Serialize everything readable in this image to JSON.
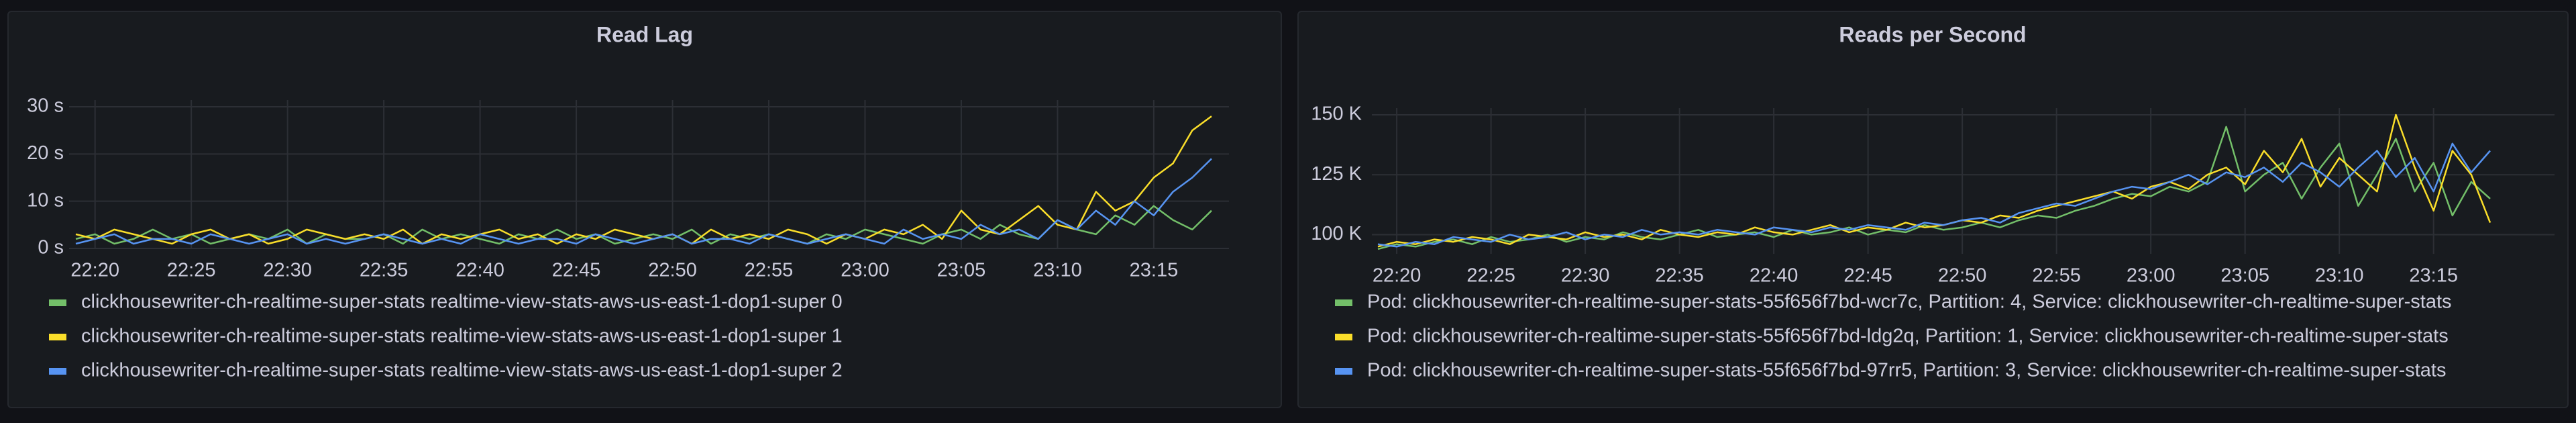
{
  "chart_data": [
    {
      "type": "line",
      "title": "Read Lag",
      "x": [
        "22:19",
        "22:20",
        "22:21",
        "22:22",
        "22:23",
        "22:24",
        "22:25",
        "22:26",
        "22:27",
        "22:28",
        "22:29",
        "22:30",
        "22:31",
        "22:32",
        "22:33",
        "22:34",
        "22:35",
        "22:36",
        "22:37",
        "22:38",
        "22:39",
        "22:40",
        "22:41",
        "22:42",
        "22:43",
        "22:44",
        "22:45",
        "22:46",
        "22:47",
        "22:48",
        "22:49",
        "22:50",
        "22:51",
        "22:52",
        "22:53",
        "22:54",
        "22:55",
        "22:56",
        "22:57",
        "22:58",
        "22:59",
        "23:00",
        "23:01",
        "23:02",
        "23:03",
        "23:04",
        "23:05",
        "23:06",
        "23:07",
        "23:08",
        "23:09",
        "23:10",
        "23:11",
        "23:12",
        "23:13",
        "23:14",
        "23:15",
        "23:16",
        "23:17",
        "23:18"
      ],
      "xlim": [
        "22:19",
        "23:18"
      ],
      "xticks": [
        "22:20",
        "22:25",
        "22:30",
        "22:35",
        "22:40",
        "22:45",
        "22:50",
        "22:55",
        "23:00",
        "23:05",
        "23:10",
        "23:15"
      ],
      "ylim": [
        0,
        30
      ],
      "yticks": [
        {
          "value": 0,
          "label": "0 s"
        },
        {
          "value": 10,
          "label": "10 s"
        },
        {
          "value": 20,
          "label": "20 s"
        },
        {
          "value": 30,
          "label": "30 s"
        }
      ],
      "grid": true,
      "legend": "bottom",
      "series": [
        {
          "name": "clickhousewriter-ch-realtime-super-stats realtime-view-stats-aws-us-east-1-dop1-super 0",
          "color": "#73bf69",
          "values": [
            2,
            3,
            1,
            2,
            4,
            2,
            3,
            1,
            2,
            3,
            2,
            4,
            1,
            3,
            2,
            2,
            3,
            1,
            4,
            2,
            3,
            2,
            1,
            3,
            2,
            4,
            2,
            3,
            1,
            2,
            3,
            2,
            4,
            1,
            3,
            2,
            3,
            2,
            1,
            3,
            2,
            4,
            3,
            2,
            1,
            3,
            4,
            2,
            5,
            3,
            2,
            6,
            4,
            3,
            7,
            5,
            9,
            6,
            4,
            8
          ]
        },
        {
          "name": "clickhousewriter-ch-realtime-super-stats realtime-view-stats-aws-us-east-1-dop1-super 1",
          "color": "#fade2a",
          "values": [
            3,
            2,
            4,
            3,
            2,
            1,
            3,
            4,
            2,
            3,
            1,
            2,
            4,
            3,
            2,
            3,
            2,
            4,
            1,
            3,
            2,
            3,
            4,
            2,
            3,
            1,
            3,
            2,
            4,
            3,
            2,
            3,
            1,
            4,
            2,
            3,
            2,
            4,
            3,
            1,
            3,
            2,
            4,
            3,
            5,
            2,
            8,
            4,
            3,
            6,
            9,
            5,
            4,
            12,
            8,
            10,
            15,
            18,
            25,
            28
          ]
        },
        {
          "name": "clickhousewriter-ch-realtime-super-stats realtime-view-stats-aws-us-east-1-dop1-super 2",
          "color": "#5794f2",
          "values": [
            1,
            2,
            3,
            1,
            2,
            2,
            1,
            3,
            2,
            1,
            2,
            3,
            1,
            2,
            1,
            2,
            3,
            2,
            1,
            2,
            1,
            3,
            2,
            1,
            2,
            2,
            1,
            3,
            2,
            1,
            2,
            3,
            1,
            2,
            2,
            1,
            3,
            2,
            1,
            2,
            3,
            2,
            1,
            4,
            2,
            3,
            2,
            5,
            3,
            4,
            2,
            6,
            4,
            8,
            5,
            10,
            7,
            12,
            15,
            19
          ]
        }
      ]
    },
    {
      "type": "line",
      "title": "Reads per Second",
      "x": [
        "22:19",
        "22:20",
        "22:21",
        "22:22",
        "22:23",
        "22:24",
        "22:25",
        "22:26",
        "22:27",
        "22:28",
        "22:29",
        "22:30",
        "22:31",
        "22:32",
        "22:33",
        "22:34",
        "22:35",
        "22:36",
        "22:37",
        "22:38",
        "22:39",
        "22:40",
        "22:41",
        "22:42",
        "22:43",
        "22:44",
        "22:45",
        "22:46",
        "22:47",
        "22:48",
        "22:49",
        "22:50",
        "22:51",
        "22:52",
        "22:53",
        "22:54",
        "22:55",
        "22:56",
        "22:57",
        "22:58",
        "22:59",
        "23:00",
        "23:01",
        "23:02",
        "23:03",
        "23:04",
        "23:05",
        "23:06",
        "23:07",
        "23:08",
        "23:09",
        "23:10",
        "23:11",
        "23:12",
        "23:13",
        "23:14",
        "23:15",
        "23:16",
        "23:17",
        "23:18"
      ],
      "xlim": [
        "22:19",
        "23:18"
      ],
      "xticks": [
        "22:20",
        "22:25",
        "22:30",
        "22:35",
        "22:40",
        "22:45",
        "22:50",
        "22:55",
        "23:00",
        "23:05",
        "23:10",
        "23:15"
      ],
      "ylim": [
        92000,
        150000
      ],
      "yticks": [
        {
          "value": 100000,
          "label": "100 K"
        },
        {
          "value": 125000,
          "label": "125 K"
        },
        {
          "value": 150000,
          "label": "150 K"
        }
      ],
      "grid": true,
      "legend": "bottom",
      "series": [
        {
          "name": "Pod: clickhousewriter-ch-realtime-super-stats-55f656f7bd-wcr7c, Partition: 4, Service: clickhousewriter-ch-realtime-super-stats",
          "color": "#73bf69",
          "values": [
            94000,
            96000,
            95000,
            97000,
            98000,
            96000,
            99000,
            97000,
            98000,
            100000,
            97000,
            99000,
            98000,
            101000,
            99000,
            98000,
            100000,
            102000,
            99000,
            100000,
            101000,
            99000,
            102000,
            100000,
            101000,
            103000,
            100000,
            102000,
            101000,
            104000,
            102000,
            103000,
            105000,
            103000,
            106000,
            108000,
            107000,
            110000,
            112000,
            115000,
            117000,
            116000,
            120000,
            118000,
            122000,
            145000,
            118000,
            125000,
            130000,
            115000,
            128000,
            138000,
            112000,
            125000,
            140000,
            118000,
            130000,
            108000,
            122000,
            115000
          ]
        },
        {
          "name": "Pod: clickhousewriter-ch-realtime-super-stats-55f656f7bd-ldg2q, Partition: 1, Service: clickhousewriter-ch-realtime-super-stats",
          "color": "#fade2a",
          "values": [
            95000,
            97000,
            96000,
            98000,
            97000,
            99000,
            98000,
            96000,
            100000,
            99000,
            98000,
            101000,
            99000,
            100000,
            98000,
            102000,
            100000,
            99000,
            101000,
            100000,
            103000,
            101000,
            100000,
            102000,
            104000,
            101000,
            103000,
            102000,
            105000,
            103000,
            104000,
            106000,
            105000,
            108000,
            107000,
            110000,
            112000,
            114000,
            116000,
            118000,
            115000,
            120000,
            122000,
            119000,
            125000,
            128000,
            121000,
            135000,
            126000,
            140000,
            120000,
            132000,
            125000,
            118000,
            150000,
            128000,
            110000,
            135000,
            125000,
            105000
          ]
        },
        {
          "name": "Pod: clickhousewriter-ch-realtime-super-stats-55f656f7bd-97rr5, Partition: 3, Service: clickhousewriter-ch-realtime-super-stats",
          "color": "#5794f2",
          "values": [
            96000,
            95000,
            97000,
            96000,
            99000,
            98000,
            97000,
            100000,
            98000,
            99000,
            101000,
            98000,
            100000,
            99000,
            102000,
            100000,
            101000,
            100000,
            102000,
            101000,
            100000,
            103000,
            102000,
            101000,
            103000,
            102000,
            104000,
            103000,
            102000,
            105000,
            104000,
            106000,
            107000,
            105000,
            109000,
            111000,
            113000,
            112000,
            115000,
            118000,
            120000,
            119000,
            122000,
            125000,
            121000,
            126000,
            124000,
            128000,
            122000,
            130000,
            126000,
            120000,
            128000,
            135000,
            124000,
            132000,
            118000,
            138000,
            126000,
            135000
          ]
        }
      ]
    }
  ]
}
